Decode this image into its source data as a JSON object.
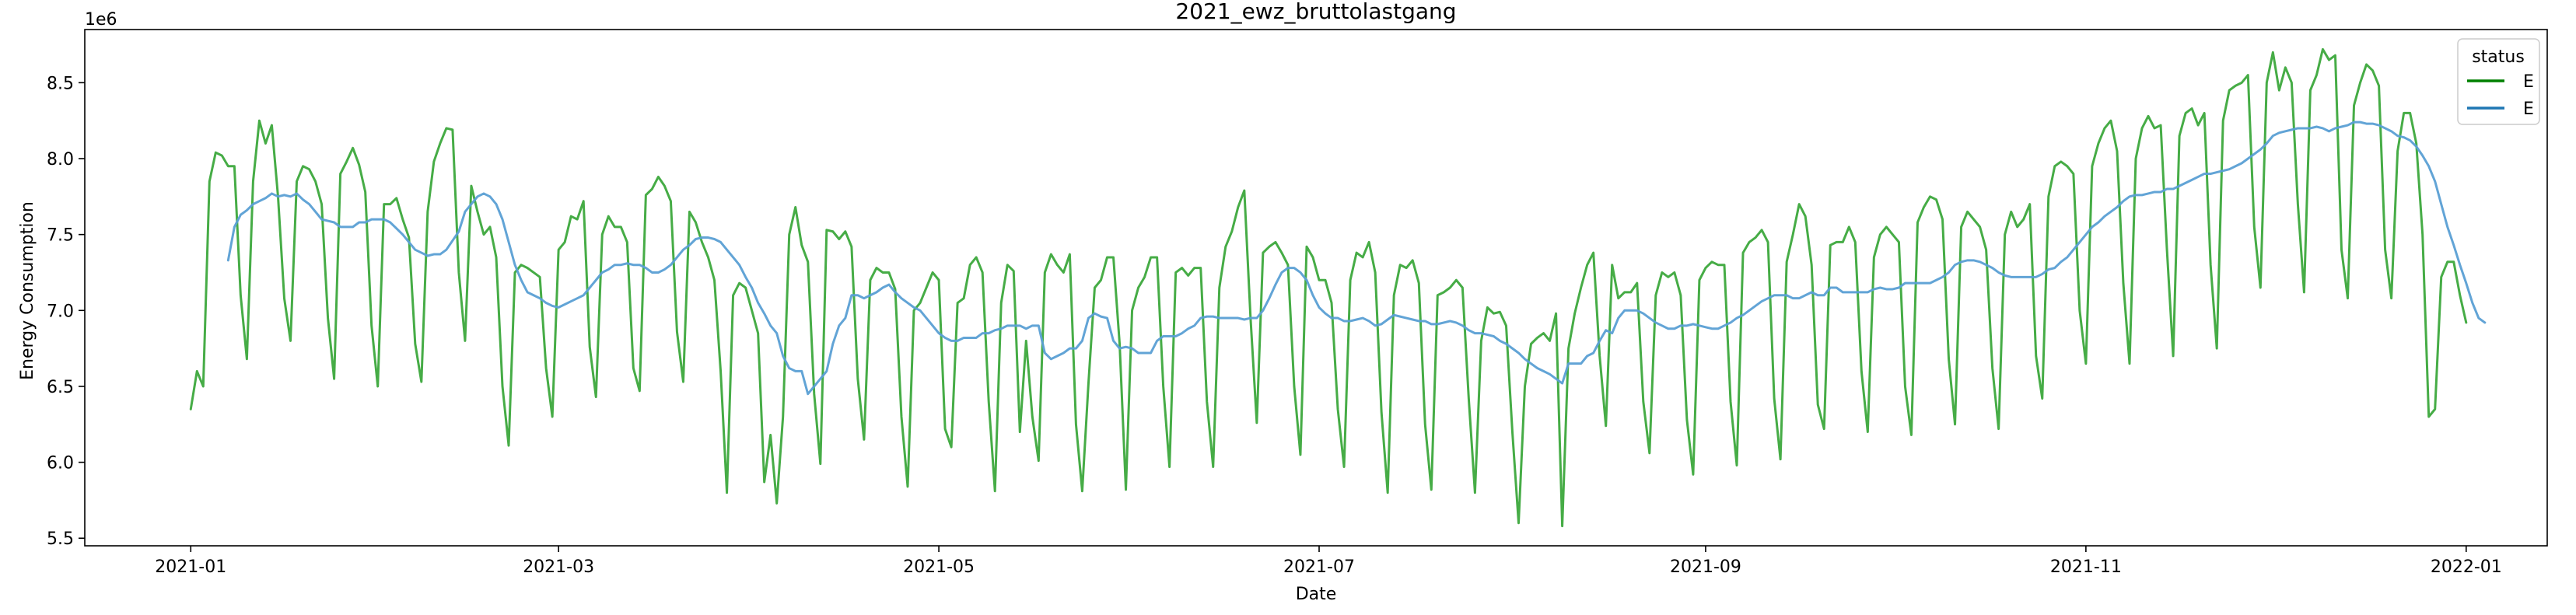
{
  "chart_data": {
    "type": "line",
    "title": "2021_ewz_bruttolastgang",
    "xlabel": "Date",
    "ylabel": "Energy Consumption",
    "y_offset_label": "1e6",
    "xlim": [
      "2020-12-15",
      "2022-01-14"
    ],
    "ylim": [
      5.45,
      8.85
    ],
    "x_ticks": [
      {
        "date": "2021-01-01",
        "label": "2021-01"
      },
      {
        "date": "2021-03-01",
        "label": "2021-03"
      },
      {
        "date": "2021-05-01",
        "label": "2021-05"
      },
      {
        "date": "2021-07-01",
        "label": "2021-07"
      },
      {
        "date": "2021-09-01",
        "label": "2021-09"
      },
      {
        "date": "2021-11-01",
        "label": "2021-11"
      },
      {
        "date": "2022-01-01",
        "label": "2022-01"
      }
    ],
    "y_ticks": [
      5.5,
      6.0,
      6.5,
      7.0,
      7.5,
      8.0,
      8.5
    ],
    "y_tick_labels": [
      "5.5",
      "6.0",
      "6.5",
      "7.0",
      "7.5",
      "8.0",
      "8.5"
    ],
    "grid": false,
    "legend": {
      "title": "status",
      "placement": "top-right",
      "entries": [
        {
          "label": "E",
          "color": "#008000"
        },
        {
          "label": "E",
          "color": "#1f77b4"
        }
      ]
    },
    "series": [
      {
        "name": "E",
        "color": "#2ca02c",
        "kind": "daily",
        "start_date": "2021-01-01",
        "values": [
          6.35,
          6.6,
          6.5,
          7.85,
          8.04,
          8.02,
          7.95,
          7.95,
          7.1,
          6.68,
          7.85,
          8.25,
          8.1,
          8.22,
          7.75,
          7.08,
          6.8,
          7.85,
          7.95,
          7.93,
          7.85,
          7.7,
          6.95,
          6.55,
          7.9,
          7.98,
          8.07,
          7.96,
          7.78,
          6.9,
          6.5,
          7.7,
          7.7,
          7.74,
          7.6,
          7.48,
          6.78,
          6.53,
          7.65,
          7.98,
          8.1,
          8.2,
          8.19,
          7.25,
          6.8,
          7.82,
          7.65,
          7.5,
          7.55,
          7.35,
          6.5,
          6.11,
          7.25,
          7.3,
          7.28,
          7.25,
          7.22,
          6.62,
          6.3,
          7.4,
          7.45,
          7.62,
          7.6,
          7.72,
          6.76,
          6.43,
          7.5,
          7.62,
          7.55,
          7.55,
          7.45,
          6.62,
          6.47,
          7.76,
          7.8,
          7.88,
          7.82,
          7.72,
          6.86,
          6.53,
          7.65,
          7.58,
          7.45,
          7.35,
          7.2,
          6.6,
          5.8,
          7.1,
          7.18,
          7.15,
          7.0,
          6.85,
          5.87,
          6.18,
          5.73,
          6.3,
          7.5,
          7.68,
          7.43,
          7.32,
          6.45,
          5.99,
          7.53,
          7.52,
          7.47,
          7.52,
          7.42,
          6.55,
          6.15,
          7.2,
          7.28,
          7.25,
          7.25,
          7.14,
          6.3,
          5.84,
          7.0,
          7.05,
          7.15,
          7.25,
          7.2,
          6.22,
          6.1,
          7.05,
          7.08,
          7.3,
          7.35,
          7.25,
          6.4,
          5.81,
          7.05,
          7.3,
          7.26,
          6.2,
          6.8,
          6.3,
          6.01,
          7.25,
          7.37,
          7.3,
          7.25,
          7.37,
          6.25,
          5.81,
          6.52,
          7.15,
          7.2,
          7.35,
          7.35,
          6.78,
          5.82,
          7.0,
          7.15,
          7.22,
          7.35,
          7.35,
          6.5,
          5.97,
          7.25,
          7.28,
          7.23,
          7.28,
          7.28,
          6.4,
          5.97,
          7.15,
          7.42,
          7.52,
          7.68,
          7.79,
          6.95,
          6.26,
          7.38,
          7.42,
          7.45,
          7.38,
          7.3,
          6.5,
          6.05,
          7.42,
          7.35,
          7.2,
          7.2,
          7.05,
          6.35,
          5.97,
          7.2,
          7.38,
          7.35,
          7.45,
          7.25,
          6.33,
          5.8,
          7.1,
          7.3,
          7.28,
          7.33,
          7.18,
          6.25,
          5.82,
          7.1,
          7.12,
          7.15,
          7.2,
          7.15,
          6.42,
          5.8,
          6.8,
          7.02,
          6.98,
          6.99,
          6.9,
          6.2,
          5.6,
          6.5,
          6.78,
          6.82,
          6.85,
          6.8,
          6.98,
          5.58,
          6.75,
          6.98,
          7.15,
          7.3,
          7.38,
          6.7,
          6.24,
          7.3,
          7.08,
          7.12,
          7.12,
          7.18,
          6.4,
          6.06,
          7.1,
          7.25,
          7.22,
          7.25,
          7.1,
          6.28,
          5.92,
          7.2,
          7.28,
          7.32,
          7.3,
          7.3,
          6.4,
          5.98,
          7.38,
          7.45,
          7.48,
          7.53,
          7.45,
          6.42,
          6.02,
          7.32,
          7.5,
          7.7,
          7.62,
          7.3,
          6.38,
          6.22,
          7.43,
          7.45,
          7.45,
          7.55,
          7.45,
          6.6,
          6.2,
          7.35,
          7.5,
          7.55,
          7.5,
          7.45,
          6.5,
          6.18,
          7.58,
          7.68,
          7.75,
          7.73,
          7.6,
          6.68,
          6.25,
          7.55,
          7.65,
          7.6,
          7.55,
          7.4,
          6.62,
          6.22,
          7.5,
          7.65,
          7.55,
          7.6,
          7.7,
          6.7,
          6.42,
          7.75,
          7.95,
          7.98,
          7.95,
          7.9,
          7.0,
          6.65,
          7.95,
          8.1,
          8.2,
          8.25,
          8.05,
          7.18,
          6.65,
          8.0,
          8.2,
          8.28,
          8.2,
          8.22,
          7.4,
          6.7,
          8.15,
          8.3,
          8.33,
          8.22,
          8.3,
          7.3,
          6.75,
          8.25,
          8.45,
          8.48,
          8.5,
          8.55,
          7.55,
          7.15,
          8.5,
          8.7,
          8.45,
          8.6,
          8.5,
          7.7,
          7.12,
          8.45,
          8.55,
          8.72,
          8.65,
          8.68,
          7.4,
          7.08,
          8.35,
          8.5,
          8.62,
          8.58,
          8.48,
          7.4,
          7.08,
          8.05,
          8.3,
          8.3,
          8.1,
          7.5,
          6.3,
          6.35,
          7.22,
          7.32,
          7.32,
          7.1,
          6.92
        ]
      },
      {
        "name": "E",
        "color": "#5a9fd4",
        "kind": "7-day rolling mean",
        "start_date": "2021-01-07",
        "values": [
          7.33,
          7.55,
          7.63,
          7.66,
          7.7,
          7.72,
          7.74,
          7.77,
          7.75,
          7.76,
          7.75,
          7.77,
          7.73,
          7.7,
          7.65,
          7.6,
          7.59,
          7.58,
          7.55,
          7.55,
          7.55,
          7.58,
          7.58,
          7.6,
          7.6,
          7.6,
          7.58,
          7.54,
          7.5,
          7.45,
          7.4,
          7.38,
          7.36,
          7.37,
          7.37,
          7.4,
          7.46,
          7.52,
          7.65,
          7.7,
          7.75,
          7.77,
          7.75,
          7.7,
          7.6,
          7.45,
          7.3,
          7.2,
          7.12,
          7.1,
          7.08,
          7.05,
          7.03,
          7.02,
          7.04,
          7.06,
          7.08,
          7.1,
          7.15,
          7.2,
          7.25,
          7.27,
          7.3,
          7.3,
          7.31,
          7.3,
          7.3,
          7.28,
          7.25,
          7.25,
          7.27,
          7.3,
          7.35,
          7.4,
          7.43,
          7.47,
          7.48,
          7.48,
          7.47,
          7.45,
          7.4,
          7.35,
          7.3,
          7.22,
          7.15,
          7.05,
          6.98,
          6.9,
          6.85,
          6.7,
          6.62,
          6.6,
          6.6,
          6.45,
          6.5,
          6.55,
          6.6,
          6.78,
          6.9,
          6.95,
          7.1,
          7.1,
          7.08,
          7.1,
          7.12,
          7.15,
          7.17,
          7.12,
          7.08,
          7.05,
          7.02,
          7.0,
          6.95,
          6.9,
          6.85,
          6.82,
          6.8,
          6.8,
          6.82,
          6.82,
          6.82,
          6.85,
          6.85,
          6.87,
          6.88,
          6.9,
          6.9,
          6.9,
          6.88,
          6.9,
          6.9,
          6.72,
          6.68,
          6.7,
          6.72,
          6.75,
          6.75,
          6.8,
          6.95,
          6.98,
          6.96,
          6.95,
          6.8,
          6.75,
          6.76,
          6.75,
          6.72,
          6.72,
          6.72,
          6.8,
          6.83,
          6.83,
          6.83,
          6.85,
          6.88,
          6.9,
          6.95,
          6.96,
          6.96,
          6.95,
          6.95,
          6.95,
          6.95,
          6.94,
          6.95,
          6.95,
          7.0,
          7.08,
          7.17,
          7.25,
          7.28,
          7.28,
          7.25,
          7.2,
          7.1,
          7.02,
          6.98,
          6.95,
          6.95,
          6.93,
          6.93,
          6.94,
          6.95,
          6.93,
          6.9,
          6.91,
          6.94,
          6.97,
          6.96,
          6.95,
          6.94,
          6.93,
          6.93,
          6.91,
          6.91,
          6.92,
          6.93,
          6.92,
          6.9,
          6.87,
          6.85,
          6.85,
          6.84,
          6.83,
          6.8,
          6.78,
          6.75,
          6.72,
          6.68,
          6.65,
          6.62,
          6.6,
          6.58,
          6.55,
          6.52,
          6.65,
          6.65,
          6.65,
          6.7,
          6.72,
          6.8,
          6.87,
          6.85,
          6.95,
          7.0,
          7.0,
          7.0,
          6.98,
          6.95,
          6.92,
          6.9,
          6.88,
          6.88,
          6.9,
          6.9,
          6.91,
          6.9,
          6.89,
          6.88,
          6.88,
          6.9,
          6.92,
          6.95,
          6.97,
          7.0,
          7.03,
          7.06,
          7.08,
          7.1,
          7.1,
          7.1,
          7.08,
          7.08,
          7.1,
          7.12,
          7.1,
          7.1,
          7.15,
          7.15,
          7.12,
          7.12,
          7.12,
          7.12,
          7.12,
          7.14,
          7.15,
          7.14,
          7.14,
          7.15,
          7.18,
          7.18,
          7.18,
          7.18,
          7.18,
          7.2,
          7.22,
          7.25,
          7.3,
          7.32,
          7.33,
          7.33,
          7.32,
          7.3,
          7.28,
          7.25,
          7.23,
          7.22,
          7.22,
          7.22,
          7.22,
          7.22,
          7.24,
          7.27,
          7.28,
          7.32,
          7.35,
          7.4,
          7.45,
          7.5,
          7.55,
          7.58,
          7.62,
          7.65,
          7.68,
          7.72,
          7.75,
          7.76,
          7.76,
          7.77,
          7.78,
          7.78,
          7.8,
          7.8,
          7.82,
          7.84,
          7.86,
          7.88,
          7.9,
          7.9,
          7.91,
          7.92,
          7.93,
          7.95,
          7.97,
          8.0,
          8.03,
          8.06,
          8.1,
          8.15,
          8.17,
          8.18,
          8.19,
          8.2,
          8.2,
          8.2,
          8.21,
          8.2,
          8.18,
          8.2,
          8.21,
          8.22,
          8.24,
          8.24,
          8.23,
          8.23,
          8.22,
          8.2,
          8.18,
          8.15,
          8.14,
          8.12,
          8.08,
          8.02,
          7.95,
          7.85,
          7.7,
          7.55,
          7.43,
          7.3,
          7.18,
          7.05,
          6.95,
          6.92
        ]
      }
    ]
  }
}
